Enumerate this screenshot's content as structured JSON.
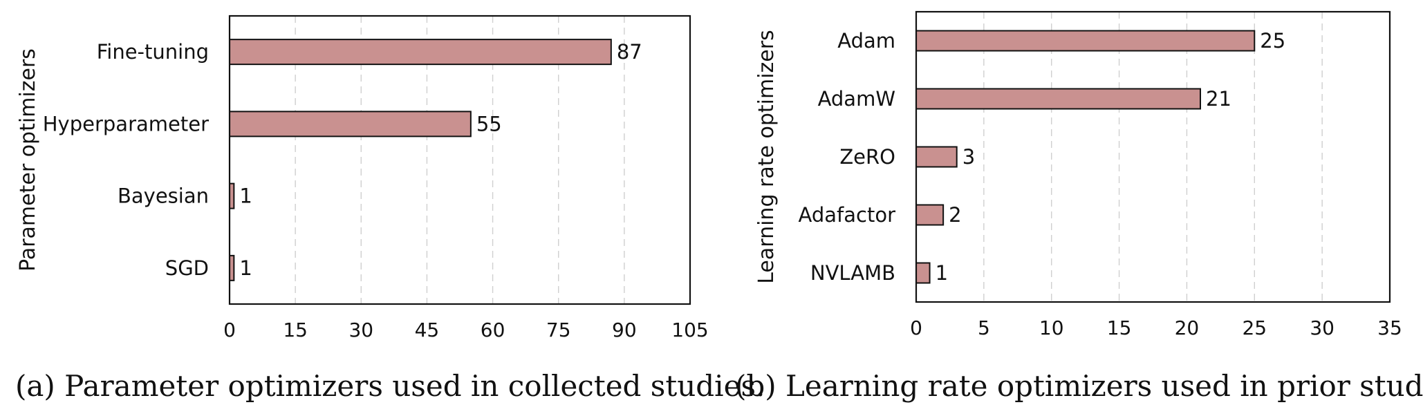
{
  "chart_data": [
    {
      "type": "bar",
      "orientation": "horizontal",
      "caption": "(a) Parameter optimizers used in collected studies.",
      "ylabel": "Parameter optimizers",
      "categories": [
        "Fine-tuning",
        "Hyperparameter",
        "Bayesian",
        "SGD"
      ],
      "values": [
        87,
        55,
        1,
        1
      ],
      "xlim": [
        0,
        105
      ],
      "xticks": [
        0,
        15,
        30,
        45,
        60,
        75,
        90,
        105
      ],
      "grid": true,
      "bar_color": "#c99190"
    },
    {
      "type": "bar",
      "orientation": "horizontal",
      "caption": "(b) Learning rate optimizers used in prior studies.",
      "ylabel": "Learning rate  optimizers",
      "categories": [
        "Adam",
        "AdamW",
        "ZeRO",
        "Adafactor",
        "NVLAMB"
      ],
      "values": [
        25,
        21,
        3,
        2,
        1
      ],
      "xlim": [
        0,
        35
      ],
      "xticks": [
        0,
        5,
        10,
        15,
        20,
        25,
        30,
        35
      ],
      "grid": true,
      "bar_color": "#c99190"
    }
  ]
}
